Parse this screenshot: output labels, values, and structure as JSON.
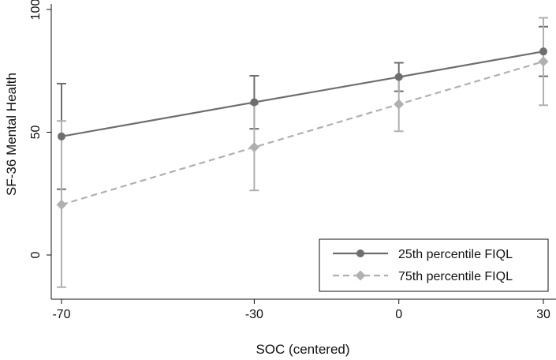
{
  "chart_data": {
    "type": "line",
    "title": "",
    "xlabel": "SOC (centered)",
    "ylabel": "SF-36 Mental Health",
    "xlim": [
      -70,
      30
    ],
    "ylim": [
      -15,
      100
    ],
    "xticks": [
      -70,
      -30,
      0,
      30
    ],
    "xtick_labels": [
      "-70",
      "-30",
      "0",
      "30"
    ],
    "yticks": [
      0,
      50,
      100
    ],
    "ytick_labels": [
      "0",
      "50",
      "100"
    ],
    "grid": false,
    "legend_position": "bottom-right",
    "series": [
      {
        "name": "25th percentile FIQL",
        "color": "#6e6e6e",
        "marker": "circle",
        "line_style": "solid",
        "x": [
          -70,
          -30,
          0,
          30
        ],
        "y": [
          48.3,
          62.2,
          72.5,
          82.9
        ],
        "ci_low": [
          26.8,
          51.4,
          66.7,
          72.8
        ],
        "ci_high": [
          69.8,
          73.0,
          78.3,
          93.0
        ]
      },
      {
        "name": "75th percentile FIQL",
        "color": "#b0b0b0",
        "marker": "diamond",
        "line_style": "dashed",
        "x": [
          -70,
          -30,
          0,
          30
        ],
        "y": [
          20.5,
          43.9,
          61.4,
          78.8
        ],
        "ci_low": [
          -13.1,
          26.3,
          50.4,
          61.0
        ],
        "ci_high": [
          54.6,
          61.5,
          72.4,
          96.6
        ]
      }
    ]
  }
}
